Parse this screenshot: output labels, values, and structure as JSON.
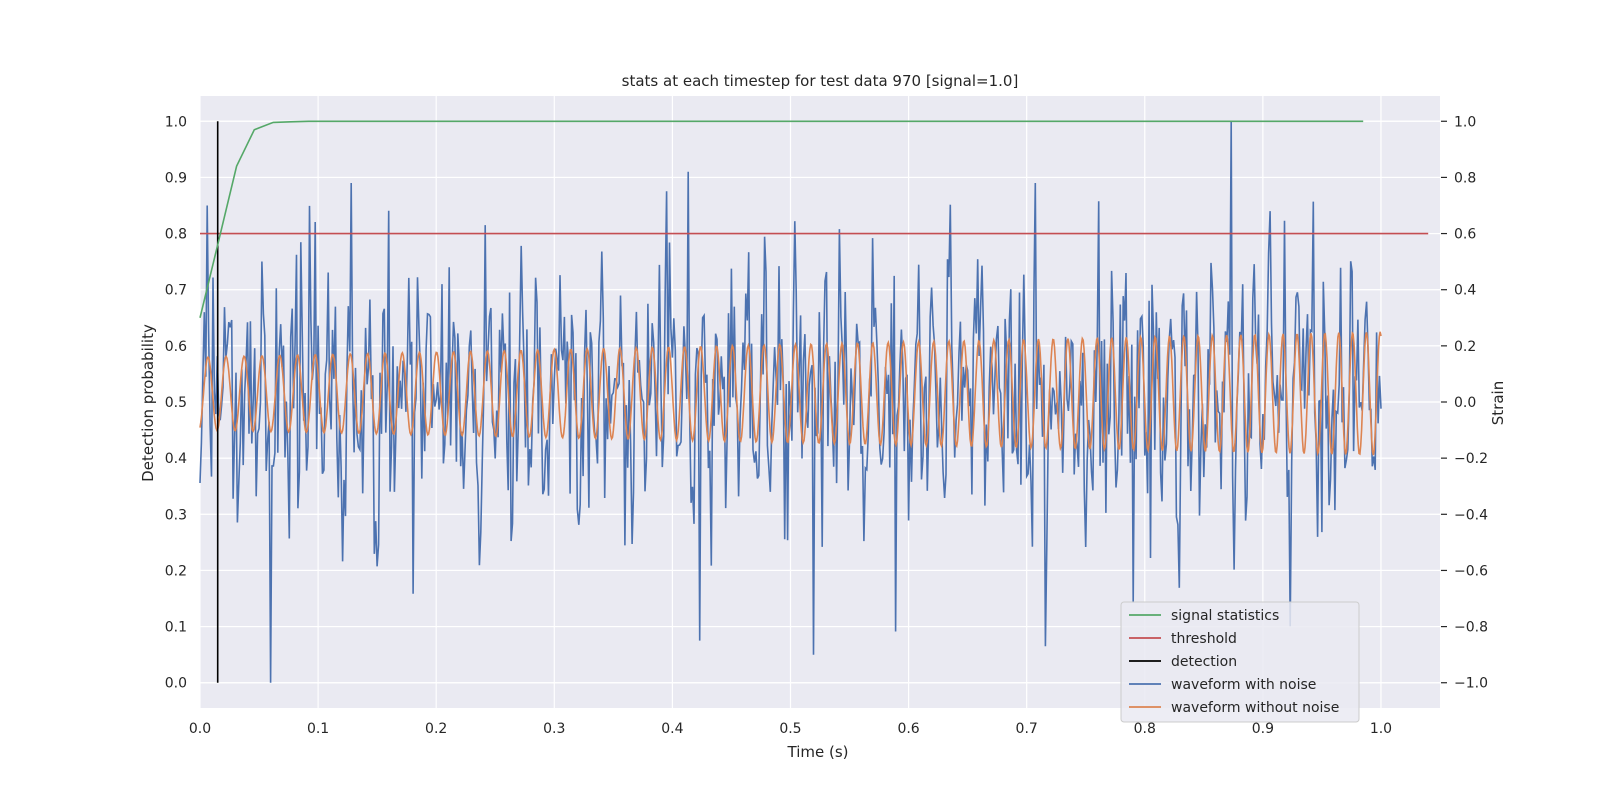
{
  "chart_data": {
    "type": "line",
    "title": "stats at each timestep for test data 970 [signal=1.0]",
    "xlabel": "Time (s)",
    "ylabel": "Detection probability",
    "y2label": "Strain",
    "xlim": [
      0.0,
      1.05
    ],
    "ylim": [
      -0.045,
      1.045
    ],
    "y2lim": [
      -1.09,
      1.09
    ],
    "xticks": [
      0.0,
      0.1,
      0.2,
      0.3,
      0.4,
      0.5,
      0.6,
      0.7,
      0.8,
      0.9,
      1.0
    ],
    "yticks": [
      0.0,
      0.1,
      0.2,
      0.3,
      0.4,
      0.5,
      0.6,
      0.7,
      0.8,
      0.9,
      1.0
    ],
    "y2ticks": [
      -1.0,
      -0.8,
      -0.6,
      -0.4,
      -0.2,
      0.0,
      0.2,
      0.4,
      0.6,
      0.8,
      1.0
    ],
    "xtick_labels": [
      "0.0",
      "0.1",
      "0.2",
      "0.3",
      "0.4",
      "0.5",
      "0.6",
      "0.7",
      "0.8",
      "0.9",
      "1.0"
    ],
    "ytick_labels": [
      "0.0",
      "0.1",
      "0.2",
      "0.3",
      "0.4",
      "0.5",
      "0.6",
      "0.7",
      "0.8",
      "0.9",
      "1.0"
    ],
    "y2tick_labels": [
      "−1.0",
      "−0.8",
      "−0.6",
      "−0.4",
      "−0.2",
      "0.0",
      "0.2",
      "0.4",
      "0.6",
      "0.8",
      "1.0"
    ],
    "grid": true,
    "legend_position": "lower-right",
    "colors": {
      "signal_statistics": "#55a868",
      "threshold": "#c44e52",
      "detection": "#000000",
      "waveform_with_noise": "#4c72b0",
      "waveform_without_noise": "#dd8452",
      "background": "#eaeaf2",
      "grid": "#ffffff"
    },
    "series": [
      {
        "name": "signal statistics",
        "axis": "left",
        "x": [
          0.0,
          0.015,
          0.031,
          0.046,
          0.062,
          0.077,
          0.092,
          0.108,
          0.123,
          0.2,
          0.4,
          0.6,
          0.8,
          0.985
        ],
        "y": [
          0.65,
          0.78,
          0.92,
          0.985,
          0.998,
          0.999,
          1.0,
          1.0,
          1.0,
          1.0,
          1.0,
          1.0,
          1.0,
          1.0
        ]
      },
      {
        "name": "threshold",
        "axis": "left",
        "x": [
          0.0,
          1.04
        ],
        "y": [
          0.8,
          0.8
        ]
      },
      {
        "name": "detection",
        "axis": "left",
        "x": [
          0.015,
          0.015
        ],
        "y": [
          0.0,
          1.0
        ]
      },
      {
        "name": "waveform with noise",
        "axis": "right",
        "x_range": [
          0.0,
          1.0
        ],
        "points": 820,
        "amplitude_std": 0.22,
        "peaks": [
          {
            "x": 0.006,
            "y": 0.7
          },
          {
            "x": 0.06,
            "y": -1.0
          },
          {
            "x": 0.413,
            "y": 0.82
          },
          {
            "x": 0.423,
            "y": -0.85
          },
          {
            "x": 0.52,
            "y": -0.9
          },
          {
            "x": 0.716,
            "y": -0.87
          },
          {
            "x": 0.873,
            "y": 1.0
          },
          {
            "x": 0.906,
            "y": 0.68
          }
        ]
      },
      {
        "name": "waveform without noise",
        "axis": "right",
        "x_range": [
          0.0,
          1.0
        ],
        "points": 1400,
        "amplitude_start": 0.13,
        "amplitude_end": 0.22,
        "frequency_start": 65,
        "frequency_end": 86
      }
    ]
  }
}
